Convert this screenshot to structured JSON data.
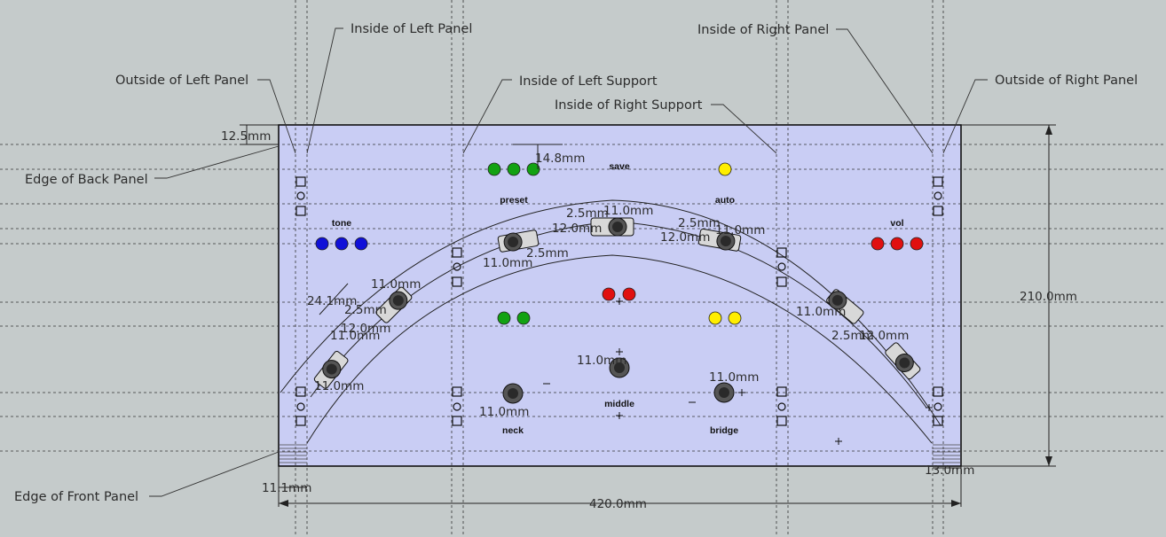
{
  "annotations": {
    "inside_left_panel": "Inside of Left Panel",
    "outside_left_panel": "Outside of Left Panel",
    "inside_left_support": "Inside of Left Support",
    "inside_right_support": "Inside of Right Support",
    "inside_right_panel": "Inside of Right Panel",
    "outside_right_panel": "Outside of Right Panel",
    "edge_back_panel": "Edge of Back Panel",
    "edge_front_panel": "Edge of Front Panel"
  },
  "dimensions": {
    "back_offset": "12.5mm",
    "led_row_offset": "14.8mm",
    "height": "210.0mm",
    "width": "420.0mm",
    "front_left": "11.1mm",
    "front_right": "13.0mm",
    "switch_gap": "2.5mm",
    "switch_len": "12.0mm",
    "knob_spacing": "11.0mm",
    "switch_span": "24.1mm"
  },
  "labels": {
    "save": "save",
    "preset": "preset",
    "auto": "auto",
    "tone": "tone",
    "vol": "vol",
    "middle": "middle",
    "neck": "neck",
    "bridge": "bridge"
  },
  "colors": {
    "panel": "#c9cdf4",
    "background": "#c5cbcb",
    "led_green": "#12a212",
    "led_blue": "#1010d8",
    "led_red": "#e01010",
    "led_yellow": "#ffee00",
    "knob": "#333333"
  }
}
